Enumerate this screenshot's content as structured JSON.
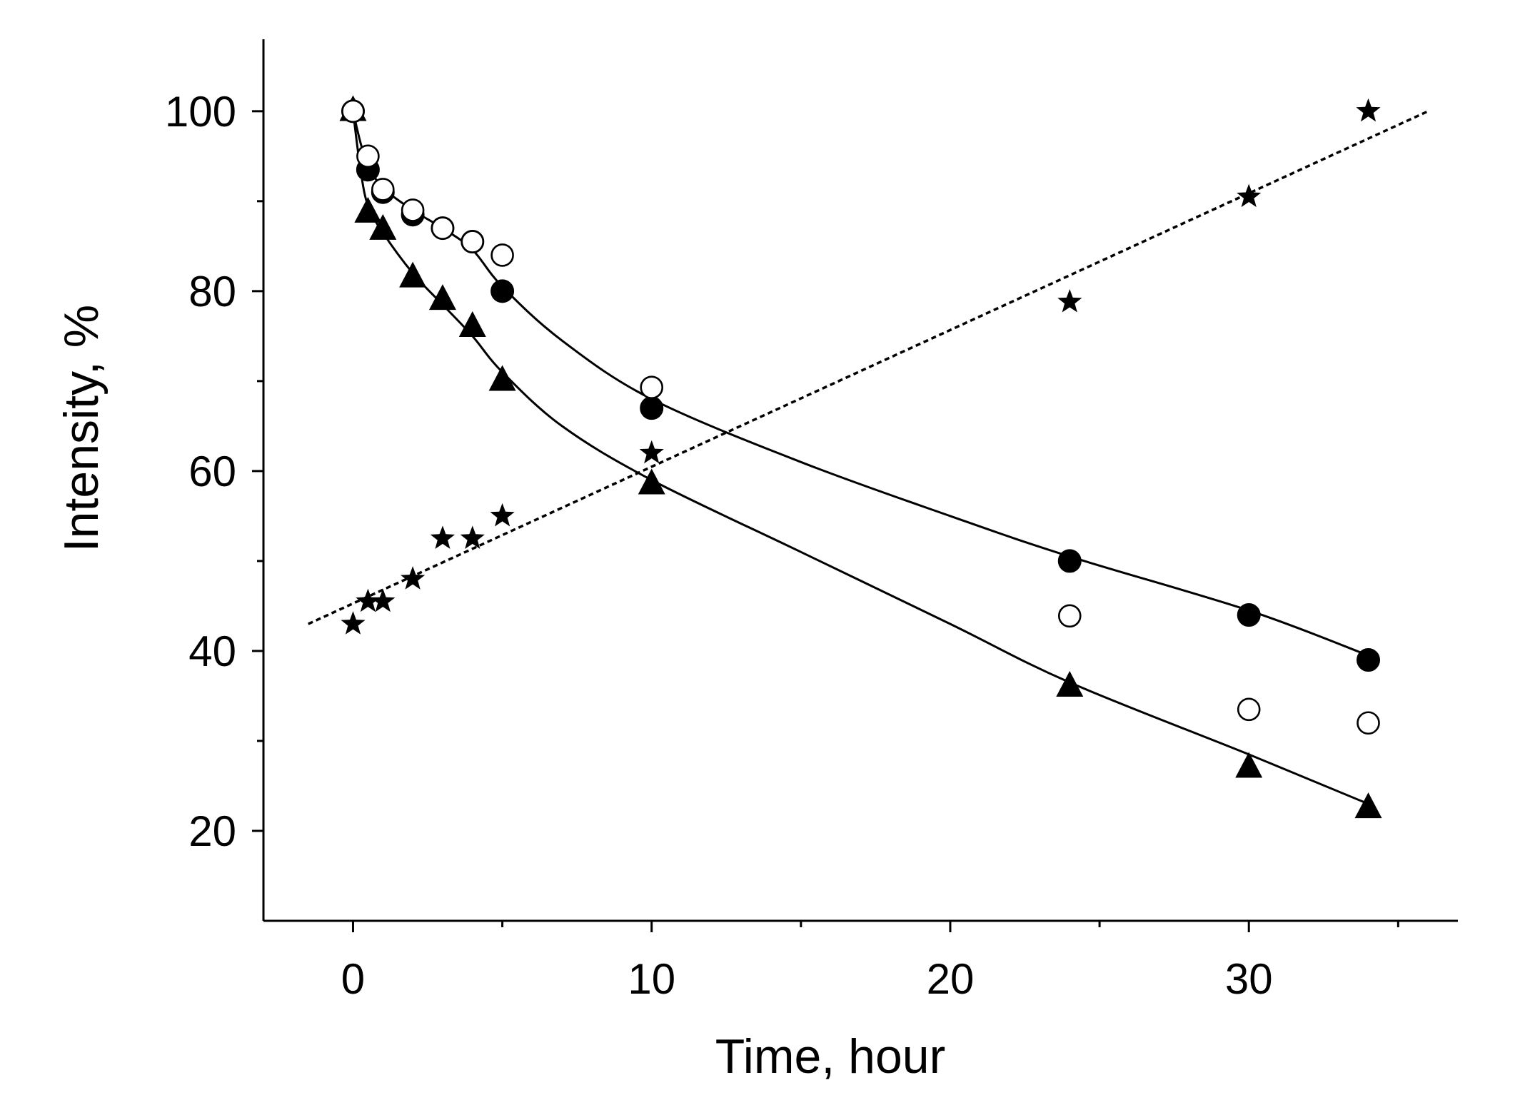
{
  "chart_data": {
    "type": "scatter",
    "title": "",
    "xlabel": "Time, hour",
    "ylabel": "Intensity, %",
    "xlim": [
      -3,
      37
    ],
    "ylim": [
      10,
      108
    ],
    "xticks": [
      0,
      10,
      20,
      30
    ],
    "xtick_labels": [
      "0",
      "10",
      "20",
      "30"
    ],
    "yticks": [
      20,
      40,
      60,
      80,
      100
    ],
    "ytick_labels": [
      "20",
      "40",
      "60",
      "80",
      "100"
    ],
    "x_minor_ticks": [
      5,
      15,
      25,
      35
    ],
    "y_minor_ticks": [
      30,
      50,
      70,
      90
    ],
    "grid": false,
    "series": [
      {
        "name": "filled circles",
        "marker": "filled-circle",
        "x": [
          0,
          0.5,
          1,
          2,
          3,
          4,
          5,
          10,
          24,
          30,
          34
        ],
        "y": [
          100,
          93.5,
          91,
          88.5,
          87,
          85.5,
          80,
          67,
          50,
          44,
          39
        ]
      },
      {
        "name": "open circles",
        "marker": "open-circle",
        "x": [
          0,
          0.5,
          1,
          2,
          3,
          4,
          5,
          10,
          24,
          30,
          34
        ],
        "y": [
          100,
          95,
          91.3,
          89,
          87,
          85.5,
          84,
          69.3,
          43.9,
          33.5,
          32
        ]
      },
      {
        "name": "triangles",
        "marker": "filled-triangle",
        "x": [
          0,
          0.5,
          1,
          2,
          3,
          4,
          5,
          10,
          24,
          30,
          34
        ],
        "y": [
          100,
          88.7,
          86.8,
          81.5,
          79,
          76,
          70,
          58.5,
          36,
          27,
          22.5
        ]
      },
      {
        "name": "stars",
        "marker": "star",
        "x": [
          0,
          0.5,
          1,
          2,
          3,
          4,
          5,
          10,
          24,
          30,
          34
        ],
        "y": [
          43,
          45.5,
          45.5,
          48,
          52.5,
          52.5,
          55,
          62,
          78.8,
          90.5,
          100
        ]
      }
    ],
    "fits": [
      {
        "name": "fit filled circles",
        "style": "solid",
        "x": [
          0,
          0.25,
          0.5,
          1,
          2,
          3,
          4,
          5,
          7,
          10,
          15,
          20,
          24,
          30,
          34
        ],
        "y": [
          100,
          96.5,
          94,
          91.5,
          89,
          87,
          84.6,
          80.5,
          74.5,
          68,
          61,
          55,
          50.5,
          44.5,
          39.5
        ]
      },
      {
        "name": "fit triangles",
        "style": "solid",
        "x": [
          0,
          0.25,
          0.5,
          1,
          2,
          3,
          4,
          5,
          7,
          10,
          15,
          20,
          24,
          30,
          34
        ],
        "y": [
          100,
          93.5,
          89.5,
          86.5,
          82,
          78.5,
          75,
          71,
          65,
          59,
          51,
          43,
          36.5,
          28.5,
          23
        ]
      },
      {
        "name": "linear fit stars",
        "style": "dotted",
        "x": [
          -1.5,
          36
        ],
        "y": [
          43,
          100
        ]
      }
    ]
  }
}
